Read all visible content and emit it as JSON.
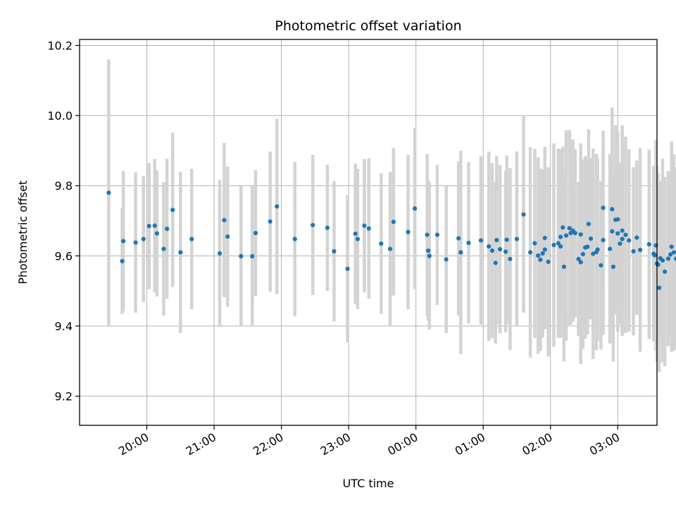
{
  "chart_data": {
    "type": "scatter",
    "title": "Photometric offset variation",
    "xlabel": "UTC time",
    "ylabel": "Photometric offset",
    "xlim": [
      "19:00",
      "03:35"
    ],
    "ylim": [
      9.117,
      10.217
    ],
    "grid": true,
    "legend": "none",
    "xticks": [
      "20:00",
      "21:00",
      "22:00",
      "23:00",
      "00:00",
      "01:00",
      "02:00",
      "03:00"
    ],
    "yticks": [
      "9.2",
      "9.4",
      "9.6",
      "9.8",
      "10.0",
      "10.2"
    ],
    "colors": {
      "points": "#1f77b4",
      "errorbars": "#d3d3d3",
      "grid": "#b0b0b0"
    },
    "series": [
      {
        "x": [
          "19:26",
          "19:38",
          "19:39",
          "19:50",
          "19:57",
          "20:02",
          "20:07",
          "20:09",
          "20:15",
          "20:18",
          "20:23",
          "20:30",
          "20:40",
          "21:05",
          "21:09",
          "21:12",
          "21:24",
          "21:34",
          "21:37",
          "21:50",
          "21:56",
          "22:12",
          "22:28",
          "22:41",
          "22:47",
          "22:59",
          "23:06",
          "23:08",
          "23:14",
          "23:18",
          "23:29",
          "23:40",
          "23:53",
          "23:59",
          "00:10",
          "00:11",
          "00:12",
          "00:19",
          "00:27",
          "00:38",
          "00:47",
          "00:58",
          "01:11",
          "01:12",
          "01:15",
          "01:21",
          "01:24",
          "01:30",
          "01:36",
          "01:46",
          "01:55",
          "01:58",
          "02:09",
          "02:12",
          "02:18",
          "02:27",
          "02:31",
          "02:34",
          "02:47",
          "02:53",
          "02:55",
          "02:56",
          "03:00",
          "03:04"
        ],
        "y": [
          9.78,
          9.585,
          9.642,
          9.638,
          9.648,
          9.685,
          9.686,
          9.664,
          9.62,
          9.677,
          9.731,
          9.61,
          9.648,
          9.607,
          9.702,
          9.655,
          9.599,
          9.599,
          9.665,
          9.698,
          9.741,
          9.648,
          9.688,
          9.68,
          9.613,
          9.563,
          9.663,
          9.648,
          9.686,
          9.678,
          9.635,
          9.697,
          9.668,
          9.735,
          9.66,
          9.615,
          9.6,
          9.66,
          9.59,
          9.65,
          9.637,
          9.644,
          9.58,
          9.645,
          9.619,
          9.646,
          9.591,
          9.648,
          9.718,
          9.636,
          9.651,
          9.583,
          9.627,
          9.569,
          9.665,
          9.661,
          9.624,
          9.691,
          9.645,
          9.62,
          9.67,
          9.569,
          9.664,
          9.648
        ],
        "yerr": [
          0.38,
          0.15,
          0.2,
          0.2,
          0.18,
          0.18,
          0.19,
          0.18,
          0.19,
          0.2,
          0.22,
          0.23,
          0.2,
          0.21,
          0.22,
          0.2,
          0.2,
          0.2,
          0.18,
          0.2,
          0.25,
          0.22,
          0.2,
          0.18,
          0.2,
          0.21,
          0.2,
          0.2,
          0.19,
          0.2,
          0.2,
          0.21,
          0.22,
          0.23,
          0.23,
          0.2,
          0.21,
          0.2,
          0.21,
          0.22,
          0.23,
          0.24,
          0.23,
          0.24,
          0.24,
          0.24,
          0.26,
          0.25,
          0.28,
          0.27,
          0.26,
          0.27,
          0.26,
          0.27,
          0.26,
          0.26,
          0.26,
          0.27,
          0.27,
          0.27,
          0.28,
          0.27,
          0.28,
          0.27
        ]
      },
      {
        "x": [
          "23:37",
          "00:40",
          "01:05",
          "01:08",
          "01:20",
          "01:42",
          "01:49",
          "01:51",
          "01:53",
          "01:55",
          "02:03",
          "02:07",
          "02:09",
          "02:11",
          "02:14",
          "02:17",
          "02:20",
          "02:22",
          "02:25",
          "02:27",
          "02:29",
          "02:33",
          "02:36",
          "02:38",
          "02:41",
          "02:42",
          "02:45",
          "02:47",
          "02:55",
          "02:58",
          "03:00",
          "03:02",
          "03:04",
          "03:07",
          "03:10",
          "03:14",
          "03:17",
          "03:20",
          "03:28",
          "03:32",
          "03:33",
          "03:34",
          "03:35",
          "03:36",
          "03:37",
          "03:38",
          "03:40",
          "03:42",
          "03:45",
          "03:47",
          "03:48",
          "03:50",
          "03:52",
          "03:55",
          "03:57",
          "03:58",
          "04:00",
          "04:03",
          "04:05",
          "04:07",
          "04:09",
          "04:11",
          "04:13",
          "04:15",
          "04:17"
        ],
        "y": [
          9.62,
          9.61,
          9.627,
          9.615,
          9.612,
          9.61,
          9.601,
          9.589,
          9.607,
          9.618,
          9.631,
          9.636,
          9.654,
          9.681,
          9.658,
          9.679,
          9.672,
          9.665,
          9.591,
          9.582,
          9.605,
          9.626,
          9.649,
          9.606,
          9.611,
          9.618,
          9.573,
          9.737,
          9.733,
          9.703,
          9.704,
          9.635,
          9.672,
          9.66,
          9.644,
          9.613,
          9.652,
          9.617,
          9.633,
          9.606,
          9.602,
          9.63,
          9.578,
          9.575,
          9.509,
          9.593,
          9.587,
          9.555,
          9.592,
          9.604,
          9.626,
          9.61,
          9.592,
          9.538,
          9.552,
          9.546,
          9.606,
          9.534,
          9.533,
          9.545,
          9.645,
          9.516,
          9.511,
          9.497,
          9.528
        ]
      }
    ]
  }
}
